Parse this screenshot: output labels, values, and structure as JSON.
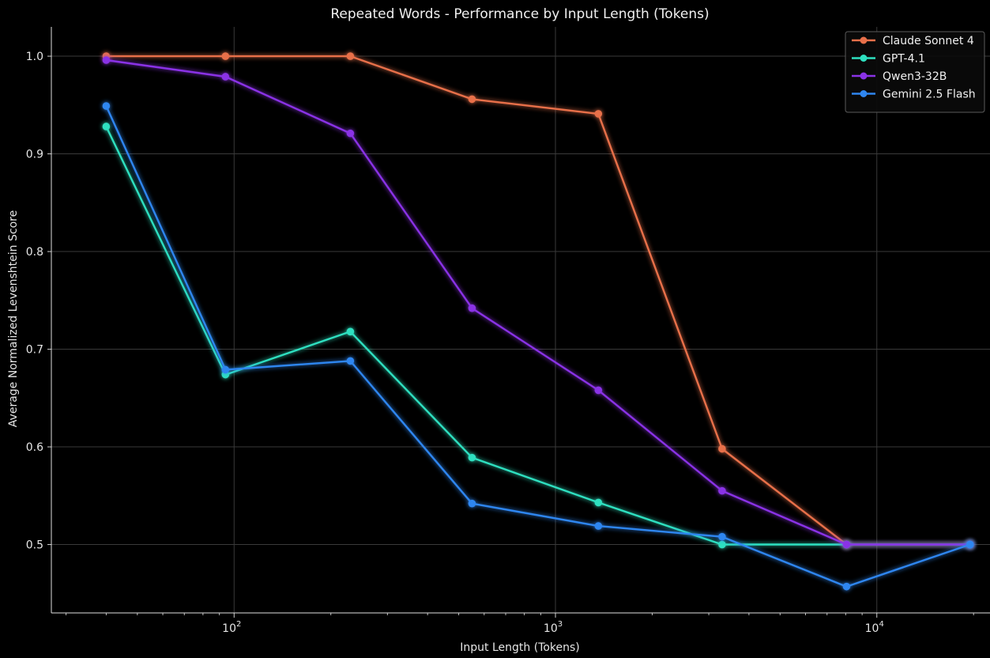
{
  "chart_data": {
    "type": "line",
    "title": "Repeated Words - Performance by Input Length (Tokens)",
    "xlabel": "Input Length (Tokens)",
    "ylabel": "Average Normalized Levenshtein Score",
    "x_scale": "log",
    "xlim": [
      27,
      22500
    ],
    "ylim": [
      0.43,
      1.03
    ],
    "x_ticks": [
      {
        "value": 100,
        "base": "10",
        "exp": "2"
      },
      {
        "value": 1000,
        "base": "10",
        "exp": "3"
      },
      {
        "value": 10000,
        "base": "10",
        "exp": "4"
      }
    ],
    "y_ticks": [
      {
        "value": 0.5,
        "label": "0.5"
      },
      {
        "value": 0.6,
        "label": "0.6"
      },
      {
        "value": 0.7,
        "label": "0.7"
      },
      {
        "value": 0.8,
        "label": "0.8"
      },
      {
        "value": 0.9,
        "label": "0.9"
      },
      {
        "value": 1.0,
        "label": "1.0"
      }
    ],
    "grid": true,
    "legend_position": "top-right",
    "x": [
      40,
      94,
      230,
      550,
      1360,
      3300,
      8050,
      19500
    ],
    "series": [
      {
        "name": "Claude Sonnet 4",
        "color": "#e8704a",
        "values": [
          1.0,
          1.0,
          1.0,
          0.956,
          0.941,
          0.598,
          0.5,
          0.5
        ]
      },
      {
        "name": "GPT-4.1",
        "color": "#2ee0c0",
        "values": [
          0.928,
          0.674,
          0.718,
          0.589,
          0.543,
          0.5,
          0.5,
          0.5
        ]
      },
      {
        "name": "Qwen3-32B",
        "color": "#8a32e6",
        "values": [
          0.996,
          0.979,
          0.921,
          0.742,
          0.658,
          0.555,
          0.5,
          0.5
        ]
      },
      {
        "name": "Gemini 2.5 Flash",
        "color": "#2f86f0",
        "values": [
          0.949,
          0.679,
          0.688,
          0.542,
          0.519,
          0.508,
          0.457,
          0.5
        ]
      }
    ]
  }
}
